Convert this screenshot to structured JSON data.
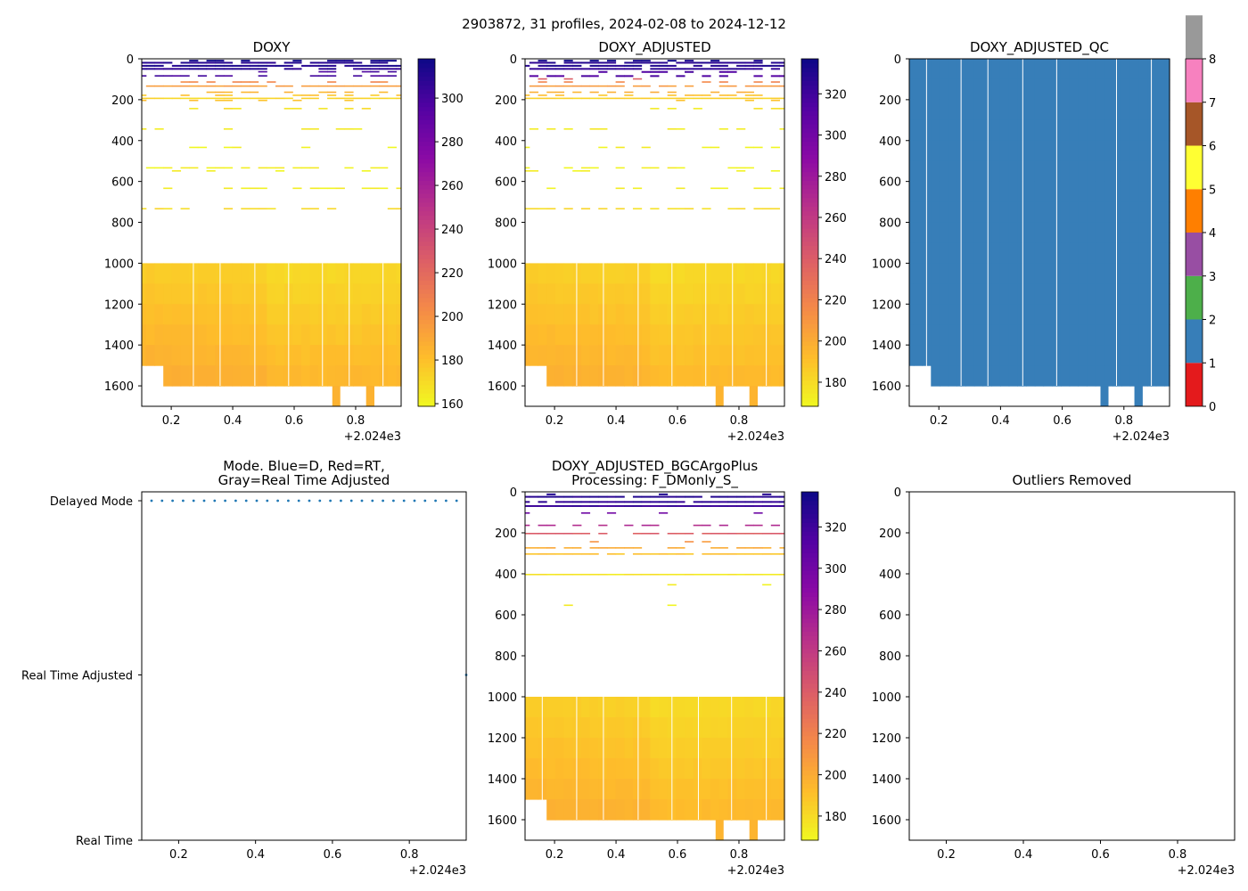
{
  "figure_title": "2903872, 31 profiles, 2024-02-08 to 2024-12-12",
  "profiles": {
    "count": 31,
    "x_start": 0.104,
    "x_end": 0.946,
    "modes": [
      "D",
      "D",
      "D",
      "D",
      "D",
      "D",
      "D",
      "D",
      "D",
      "D",
      "D",
      "D",
      "D",
      "D",
      "D",
      "D",
      "D",
      "D",
      "D",
      "D",
      "D",
      "D",
      "D",
      "D",
      "D",
      "D",
      "D",
      "D",
      "D",
      "D",
      "A"
    ]
  },
  "x_offset_label": "+2.024e3",
  "x_ticks": [
    "0.2",
    "0.4",
    "0.6",
    "0.8"
  ],
  "x_tick_values": [
    0.2,
    0.4,
    0.6,
    0.8
  ],
  "depth_ticks": [
    "0",
    "200",
    "400",
    "600",
    "800",
    "1000",
    "1200",
    "1400",
    "1600"
  ],
  "depth_tick_values": [
    0,
    200,
    400,
    600,
    800,
    1000,
    1200,
    1400,
    1600
  ],
  "chart_data": [
    {
      "type": "heatmap",
      "title": "DOXY",
      "xlim": [
        0.104,
        0.948
      ],
      "ylim": [
        1700,
        0
      ],
      "colorbar": {
        "min": 158.8,
        "max": 318,
        "ticks": [
          "160",
          "180",
          "200",
          "220",
          "240",
          "260",
          "280",
          "300"
        ],
        "tick_values": [
          160,
          180,
          200,
          220,
          240,
          260,
          280,
          300
        ],
        "colormap": "plasma_r"
      },
      "column_breaks": [
        0.272,
        0.359,
        0.472,
        0.582,
        0.692,
        0.779,
        0.889
      ],
      "deep": {
        "top": 1000,
        "bottom": 1600,
        "first_bottom": 1500,
        "first_end": 0.188,
        "stubs": [
          [
            0.724,
            0.75
          ],
          [
            0.834,
            0.861
          ]
        ],
        "values_top": 172,
        "values_bottom": 186
      },
      "rows": [
        [
          5,
          318,
          0.3
        ],
        [
          15,
          310,
          0.85
        ],
        [
          30,
          312,
          0.9
        ],
        [
          45,
          308,
          0.8
        ],
        [
          60,
          300,
          0.2
        ],
        [
          80,
          300,
          0.6
        ],
        [
          95,
          225,
          0.1
        ],
        [
          110,
          205,
          0.3
        ],
        [
          130,
          195,
          0.85
        ],
        [
          160,
          185,
          0.3
        ],
        [
          175,
          178,
          0.4
        ],
        [
          190,
          172,
          0.9
        ],
        [
          200,
          180,
          0.1
        ],
        [
          240,
          168,
          0.2
        ],
        [
          340,
          165,
          0.35
        ],
        [
          430,
          162,
          0.3
        ],
        [
          530,
          162,
          0.45
        ],
        [
          545,
          162,
          0.1
        ],
        [
          630,
          162,
          0.5
        ],
        [
          730,
          170,
          0.55
        ]
      ]
    },
    {
      "type": "heatmap",
      "title": "DOXY_ADJUSTED",
      "xlim": [
        0.104,
        0.948
      ],
      "ylim": [
        1700,
        0
      ],
      "colorbar": {
        "min": 168.3,
        "max": 337,
        "ticks": [
          "180",
          "200",
          "220",
          "240",
          "260",
          "280",
          "300",
          "320"
        ],
        "tick_values": [
          180,
          200,
          220,
          240,
          260,
          280,
          300,
          320
        ],
        "colormap": "plasma_r"
      },
      "column_breaks": [
        0.272,
        0.359,
        0.472,
        0.582,
        0.692,
        0.779,
        0.889
      ],
      "deep": {
        "top": 1000,
        "bottom": 1600,
        "first_bottom": 1500,
        "first_end": 0.188,
        "stubs": [
          [
            0.724,
            0.75
          ],
          [
            0.834,
            0.861
          ]
        ],
        "values_top": 182,
        "values_bottom": 196
      },
      "rows": [
        [
          5,
          336,
          0.3
        ],
        [
          15,
          328,
          0.85
        ],
        [
          30,
          330,
          0.9
        ],
        [
          45,
          326,
          0.8
        ],
        [
          60,
          315,
          0.2
        ],
        [
          80,
          315,
          0.6
        ],
        [
          95,
          240,
          0.1
        ],
        [
          110,
          218,
          0.3
        ],
        [
          130,
          208,
          0.85
        ],
        [
          160,
          198,
          0.3
        ],
        [
          175,
          190,
          0.4
        ],
        [
          190,
          184,
          0.9
        ],
        [
          200,
          190,
          0.1
        ],
        [
          240,
          176,
          0.2
        ],
        [
          340,
          174,
          0.35
        ],
        [
          430,
          172,
          0.3
        ],
        [
          530,
          172,
          0.45
        ],
        [
          545,
          172,
          0.1
        ],
        [
          630,
          172,
          0.5
        ],
        [
          730,
          180,
          0.55
        ]
      ]
    },
    {
      "type": "heatmap",
      "title": "DOXY_ADJUSTED_QC",
      "xlim": [
        0.104,
        0.948
      ],
      "ylim": [
        1700,
        0
      ],
      "colorbar": {
        "min": 0,
        "max": 8,
        "ticks": [
          "0",
          "1",
          "2",
          "3",
          "4",
          "5",
          "6",
          "7",
          "8"
        ],
        "tick_values": [
          0,
          1,
          2,
          3,
          4,
          5,
          6,
          7,
          8
        ],
        "colors": [
          "#e41a1c",
          "#377eb8",
          "#4daf4a",
          "#984ea3",
          "#ff7f00",
          "#ffff33",
          "#a65628",
          "#f781bf",
          "#999999"
        ]
      },
      "column_breaks": [
        0.16,
        0.272,
        0.359,
        0.472,
        0.582,
        0.776,
        0.889
      ],
      "qc_value": 1,
      "deep": {
        "top": 0,
        "bottom": 1600,
        "first_bottom": 1500,
        "first_end": 0.188,
        "stubs": [
          [
            0.724,
            0.75
          ],
          [
            0.834,
            0.861
          ]
        ]
      }
    },
    {
      "type": "scatter",
      "title": "Mode. Blue=D, Red=RT,",
      "title2": "Gray=Real Time Adjusted",
      "y_categories": [
        "Delayed Mode",
        "Real Time Adjusted",
        "Real Time"
      ],
      "xlim": [
        0.104,
        0.948
      ],
      "color": "#1f77b4"
    },
    {
      "type": "heatmap",
      "title": "DOXY_ADJUSTED_BGCArgoPlus",
      "title2": "Processing: F_DMonly_S_",
      "xlim": [
        0.104,
        0.948
      ],
      "ylim": [
        1700,
        0
      ],
      "colorbar": {
        "min": 168.3,
        "max": 337,
        "ticks": [
          "180",
          "200",
          "220",
          "240",
          "260",
          "280",
          "300",
          "320"
        ],
        "tick_values": [
          180,
          200,
          220,
          240,
          260,
          280,
          300,
          320
        ],
        "colormap": "plasma_r"
      },
      "column_breaks": [
        0.16,
        0.272,
        0.359,
        0.472,
        0.582,
        0.668,
        0.776,
        0.889
      ],
      "deep": {
        "top": 1000,
        "bottom": 1600,
        "first_bottom": 1500,
        "first_end": 0.188,
        "stubs": [
          [
            0.724,
            0.75
          ],
          [
            0.834,
            0.861
          ]
        ],
        "values_top": 182,
        "values_bottom": 196
      },
      "rows": [
        [
          8,
          330,
          0.1
        ],
        [
          20,
          328,
          0.9
        ],
        [
          45,
          326,
          0.85
        ],
        [
          65,
          322,
          0.95
        ],
        [
          100,
          300,
          0.1
        ],
        [
          160,
          270,
          0.45
        ],
        [
          200,
          240,
          0.9
        ],
        [
          240,
          210,
          0.1
        ],
        [
          270,
          200,
          0.6
        ],
        [
          300,
          190,
          0.9
        ],
        [
          400,
          176,
          1.0
        ],
        [
          450,
          172,
          0.15
        ],
        [
          550,
          172,
          0.05
        ]
      ]
    },
    {
      "type": "scatter",
      "title": "Outliers Removed",
      "xlim": [
        0.104,
        0.948
      ],
      "ylim": [
        1700,
        0
      ],
      "points": []
    }
  ]
}
